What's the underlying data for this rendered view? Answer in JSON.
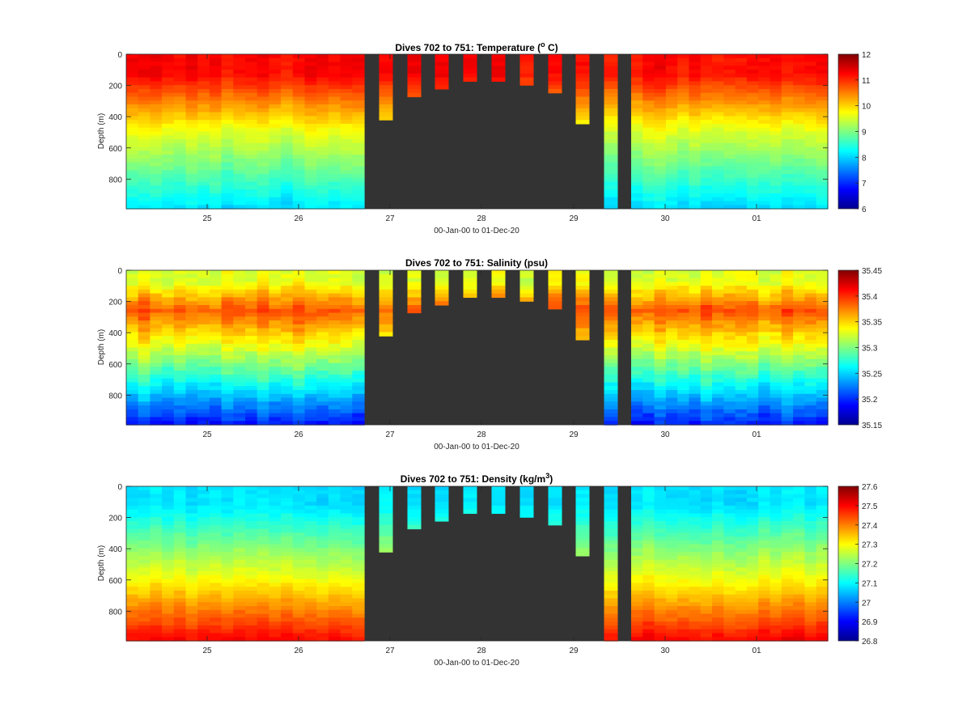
{
  "colors": {
    "background": "#ffffff",
    "no_data": "#333333",
    "axis": "#262626",
    "colormap": "jet"
  },
  "chart_data": [
    {
      "type": "heatmap",
      "title_main": "Dives 702 to 751: Temperature (",
      "title_sup": "o",
      "title_end": " C)",
      "xlabel": "00-Jan-00 to 01-Dec-20",
      "ylabel": "Depth (m)",
      "x_ticks": [
        "25",
        "26",
        "27",
        "28",
        "29",
        "30",
        "01"
      ],
      "y_ticks": [
        "0",
        "200",
        "400",
        "600",
        "800"
      ],
      "ylim": [
        0,
        990
      ],
      "colorbar_ticks": [
        "12",
        "11",
        "10",
        "9",
        "8",
        "7",
        "6"
      ],
      "clim": [
        6,
        12
      ],
      "profile_max_depth_m": [
        425,
        280,
        230,
        180,
        175,
        205,
        255,
        455,
        990
      ],
      "approx_values": {
        "surface": 11.2,
        "bottom": 8.3
      }
    },
    {
      "type": "heatmap",
      "title_main": "Dives 702 to 751: Salinity (psu)",
      "title_sup": "",
      "title_end": "",
      "xlabel": "00-Jan-00 to 01-Dec-20",
      "ylabel": "Depth (m)",
      "x_ticks": [
        "25",
        "26",
        "27",
        "28",
        "29",
        "30",
        "01"
      ],
      "y_ticks": [
        "0",
        "200",
        "400",
        "600",
        "800"
      ],
      "ylim": [
        0,
        990
      ],
      "colorbar_ticks": [
        "35.45",
        "35.4",
        "35.35",
        "35.3",
        "35.25",
        "35.2",
        "35.15"
      ],
      "clim": [
        35.15,
        35.45
      ],
      "profile_max_depth_m": [
        425,
        280,
        230,
        180,
        175,
        205,
        255,
        455,
        990
      ],
      "approx_values": {
        "surface": 35.33,
        "subsurface_max": 35.39,
        "bottom": 35.21
      }
    },
    {
      "type": "heatmap",
      "title_main": "Dives 702 to 751: Density (kg/m",
      "title_sup": "3",
      "title_end": ")",
      "xlabel": "00-Jan-00 to 01-Dec-20",
      "ylabel": "Depth (m)",
      "x_ticks": [
        "25",
        "26",
        "27",
        "28",
        "29",
        "30",
        "01"
      ],
      "y_ticks": [
        "0",
        "200",
        "400",
        "600",
        "800"
      ],
      "ylim": [
        0,
        990
      ],
      "colorbar_ticks": [
        "27.6",
        "27.5",
        "27.4",
        "27.3",
        "27.2",
        "27.1",
        "27",
        "26.9",
        "26.8"
      ],
      "clim": [
        26.8,
        27.6
      ],
      "profile_max_depth_m": [
        425,
        280,
        230,
        180,
        175,
        205,
        255,
        455,
        990
      ],
      "approx_values": {
        "surface": 27.02,
        "bottom": 27.45
      }
    }
  ]
}
